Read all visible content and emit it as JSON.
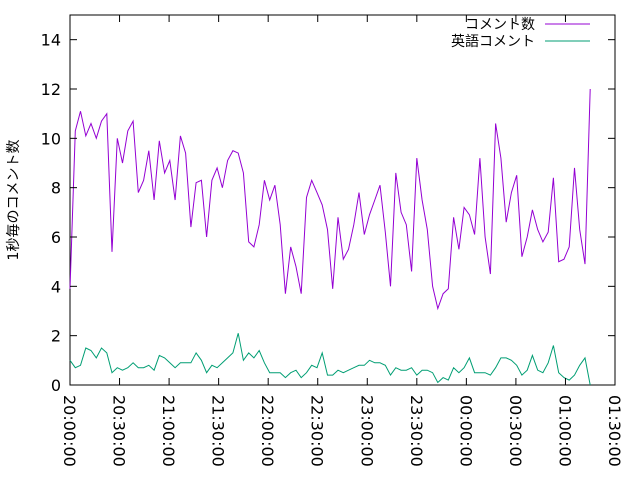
{
  "chart_data": {
    "type": "line",
    "title": "",
    "xlabel": "",
    "ylabel": "1秒毎のコメント数",
    "ylim": [
      0,
      15
    ],
    "yticks": [
      0,
      2,
      4,
      6,
      8,
      10,
      12,
      14
    ],
    "xlim_minutes": [
      0,
      330
    ],
    "xticks": [
      "20:00:00",
      "20:30:00",
      "21:00:00",
      "21:30:00",
      "22:00:00",
      "22:30:00",
      "23:00:00",
      "23:30:00",
      "00:00:00",
      "00:30:00",
      "01:00:00",
      "01:30:00"
    ],
    "legend_position": "top-right",
    "grid": false,
    "series": [
      {
        "name": "コメント数",
        "color": "#9400d3",
        "values": [
          3.9,
          10.3,
          11.1,
          10.1,
          10.6,
          10.0,
          10.7,
          11.0,
          5.4,
          10.0,
          9.0,
          10.3,
          10.7,
          7.8,
          8.3,
          9.5,
          7.5,
          9.9,
          8.6,
          9.1,
          7.5,
          10.1,
          9.4,
          6.4,
          8.2,
          8.3,
          6.0,
          8.3,
          8.8,
          8.0,
          9.1,
          9.5,
          9.4,
          8.6,
          5.8,
          5.6,
          6.5,
          8.3,
          7.5,
          8.1,
          6.5,
          3.7,
          5.6,
          4.8,
          3.7,
          7.6,
          8.3,
          7.8,
          7.3,
          6.3,
          3.9,
          6.8,
          5.1,
          5.5,
          6.5,
          7.8,
          6.1,
          6.9,
          7.5,
          8.1,
          6.2,
          4.0,
          8.6,
          7.0,
          6.5,
          4.6,
          9.2,
          7.5,
          6.3,
          4.0,
          3.1,
          3.7,
          3.9,
          6.8,
          5.5,
          7.2,
          6.9,
          6.1,
          9.2,
          6.0,
          4.5,
          10.6,
          9.2,
          6.6,
          7.8,
          8.5,
          5.2,
          6.0,
          7.1,
          6.3,
          5.8,
          6.2,
          8.4,
          5.0,
          5.1,
          5.6,
          8.8,
          6.3,
          4.9,
          12.0
        ]
      },
      {
        "name": "英語コメント",
        "color": "#009e73",
        "values": [
          1.0,
          0.7,
          0.8,
          1.5,
          1.4,
          1.1,
          1.5,
          1.3,
          0.5,
          0.7,
          0.6,
          0.7,
          0.9,
          0.7,
          0.7,
          0.8,
          0.6,
          1.2,
          1.1,
          0.9,
          0.7,
          0.9,
          0.9,
          0.9,
          1.3,
          1.0,
          0.5,
          0.8,
          0.7,
          0.9,
          1.1,
          1.3,
          2.1,
          1.0,
          1.3,
          1.1,
          1.4,
          0.9,
          0.5,
          0.5,
          0.5,
          0.3,
          0.5,
          0.6,
          0.3,
          0.5,
          0.8,
          0.7,
          1.3,
          0.4,
          0.4,
          0.6,
          0.5,
          0.6,
          0.7,
          0.8,
          0.8,
          1.0,
          0.9,
          0.9,
          0.8,
          0.4,
          0.7,
          0.6,
          0.6,
          0.7,
          0.4,
          0.6,
          0.6,
          0.5,
          0.1,
          0.3,
          0.2,
          0.7,
          0.5,
          0.7,
          1.1,
          0.5,
          0.5,
          0.5,
          0.4,
          0.7,
          1.1,
          1.1,
          1.0,
          0.8,
          0.4,
          0.6,
          1.2,
          0.6,
          0.5,
          0.9,
          1.6,
          0.5,
          0.3,
          0.2,
          0.4,
          0.8,
          1.1,
          0.0
        ]
      }
    ]
  }
}
